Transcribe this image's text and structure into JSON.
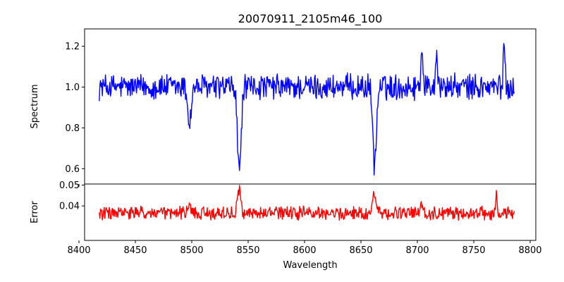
{
  "chart_data": [
    {
      "type": "line",
      "title": "20070911_2105m46_100",
      "xlabel": "",
      "ylabel": "Spectrum",
      "xlim": [
        8405,
        8805
      ],
      "ylim": [
        0.525,
        1.285
      ],
      "xticks": [
        8400,
        8450,
        8500,
        8550,
        8600,
        8650,
        8700,
        8750,
        8800
      ],
      "xtick_labels_visible": false,
      "yticks": [
        0.6,
        0.8,
        1.0,
        1.2
      ],
      "ytick_labels": [
        "0.6",
        "0.8",
        "1.0",
        "1.2"
      ],
      "grid": false,
      "series": [
        {
          "color": "#0000ff",
          "x_start": 8418,
          "x_end": 8786,
          "baseline": 1.0,
          "noise": 0.055,
          "features": [
            {
              "center": 8498.0,
              "depth": 0.18,
              "width": 1.5
            },
            {
              "center": 8542.1,
              "depth": 0.42,
              "width": 1.6
            },
            {
              "center": 8662.1,
              "depth": 0.38,
              "width": 1.6
            },
            {
              "center": 8704.0,
              "depth": -0.18,
              "width": 1.0
            },
            {
              "center": 8717.0,
              "depth": -0.2,
              "width": 0.8
            },
            {
              "center": 8777.0,
              "depth": -0.22,
              "width": 0.8
            }
          ]
        }
      ]
    },
    {
      "type": "line",
      "title": "",
      "xlabel": "Wavelength",
      "ylabel": "Error",
      "xlim": [
        8405,
        8805
      ],
      "ylim": [
        0.0235,
        0.0505
      ],
      "xticks": [
        8400,
        8450,
        8500,
        8550,
        8600,
        8650,
        8700,
        8750,
        8800
      ],
      "xtick_labels": [
        "8400",
        "8450",
        "8500",
        "8550",
        "8600",
        "8650",
        "8700",
        "8750",
        "8800"
      ],
      "yticks": [
        0.04,
        0.05
      ],
      "ytick_labels": [
        "0.04",
        "0.05"
      ],
      "grid": false,
      "series": [
        {
          "color": "#ff0000",
          "x_start": 8418,
          "x_end": 8786,
          "baseline": 0.0365,
          "noise": 0.0028,
          "features": [
            {
              "center": 8498.0,
              "height": 0.003,
              "width": 1.5
            },
            {
              "center": 8542.1,
              "height": 0.0105,
              "width": 1.6
            },
            {
              "center": 8662.1,
              "height": 0.0095,
              "width": 1.6
            },
            {
              "center": 8704.0,
              "height": 0.005,
              "width": 1.0
            },
            {
              "center": 8770.0,
              "height": 0.009,
              "width": 0.8
            }
          ]
        }
      ]
    }
  ]
}
